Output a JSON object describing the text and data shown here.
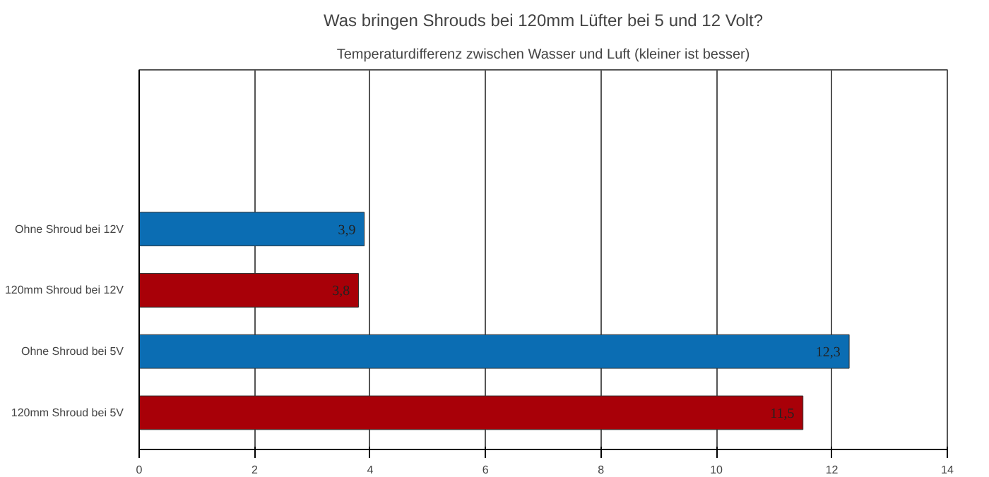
{
  "chart_data": {
    "type": "bar",
    "orientation": "horizontal",
    "title": "Was bringen Shrouds bei 120mm Lüfter bei 5 und 12 Volt?",
    "subtitle": "Temperaturdifferenz zwischen Wasser und Luft (kleiner ist besser)",
    "categories": [
      "Ohne Shroud bei 12V",
      "120mm Shroud bei 12V",
      "Ohne Shroud bei 5V",
      "120mm Shroud bei 5V"
    ],
    "values": [
      3.9,
      3.8,
      12.3,
      11.5
    ],
    "colors": [
      "#0b6db3",
      "#a80008",
      "#0b6db3",
      "#a80008"
    ],
    "value_labels": [
      "3,9",
      "3,8",
      "12,3",
      "11,5"
    ],
    "xlim": [
      0,
      14
    ],
    "xticks": [
      0,
      2,
      4,
      6,
      8,
      10,
      12,
      14
    ],
    "grid": "x"
  }
}
